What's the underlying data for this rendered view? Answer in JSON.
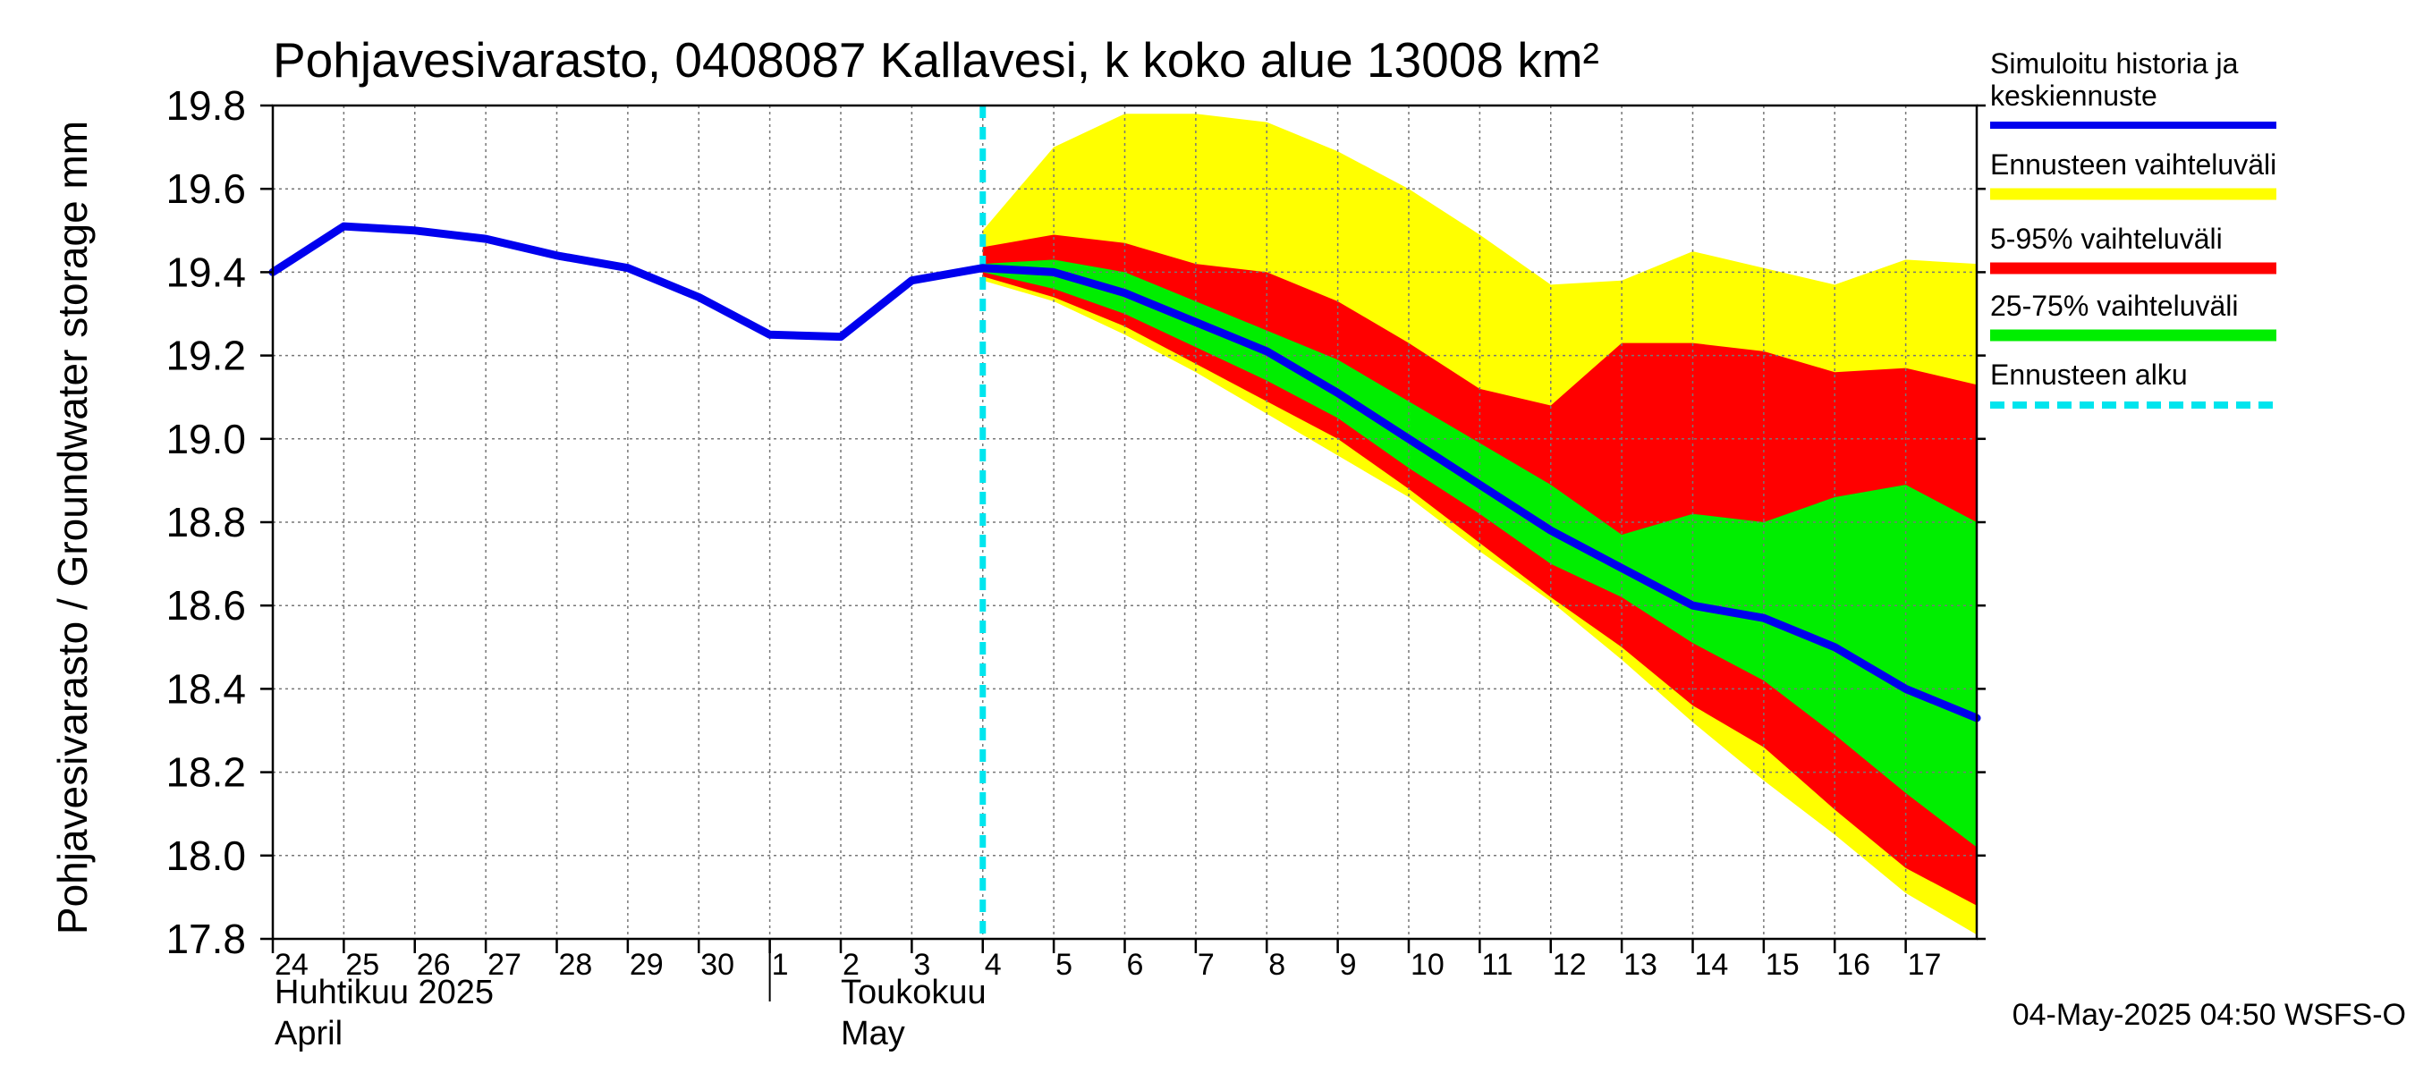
{
  "chart_data": {
    "type": "area",
    "title": "Pohjavesivarasto, 0408087 Kallavesi, k koko alue 13008 km²",
    "ylabel": "Pohjavesivarasto / Groundwater storage   mm",
    "ylim": [
      17.8,
      19.8
    ],
    "y_ticks": [
      "17.8",
      "18.0",
      "18.2",
      "18.4",
      "18.6",
      "18.8",
      "19.0",
      "19.2",
      "19.4",
      "19.6",
      "19.8"
    ],
    "x_tick_labels": [
      "24",
      "25",
      "26",
      "27",
      "28",
      "29",
      "30",
      "1",
      "2",
      "3",
      "4",
      "5",
      "6",
      "7",
      "8",
      "9",
      "10",
      "11",
      "12",
      "13",
      "14",
      "15",
      "16",
      "17"
    ],
    "month_labels": {
      "april_fi": "Huhtikuu  2025",
      "april_en": "April",
      "may_fi": "Toukokuu",
      "may_en": "May"
    },
    "grid": true,
    "x_range": [
      0,
      24
    ],
    "forecast_start": 10,
    "history": {
      "x": [
        0,
        1,
        2,
        3,
        4,
        5,
        6,
        7,
        8,
        9,
        10
      ],
      "values": [
        19.4,
        19.51,
        19.5,
        19.48,
        19.44,
        19.41,
        19.34,
        19.25,
        19.245,
        19.38,
        19.41
      ]
    },
    "forecast_x": [
      10,
      11,
      12,
      13,
      14,
      15,
      16,
      17,
      18,
      19,
      20,
      21,
      22,
      23,
      24
    ],
    "series": [
      {
        "name": "Ennusteen vaihteluväli",
        "color": "#ffff00",
        "upper": [
          19.5,
          19.7,
          19.78,
          19.78,
          19.76,
          19.69,
          19.6,
          19.49,
          19.37,
          19.38,
          19.45,
          19.41,
          19.37,
          19.43,
          19.42
        ],
        "lower": [
          19.38,
          19.33,
          19.25,
          19.16,
          19.06,
          18.96,
          18.86,
          18.73,
          18.61,
          18.47,
          18.32,
          18.18,
          18.05,
          17.91,
          17.81
        ]
      },
      {
        "name": "5-95% vaihteluväli",
        "color": "#ff0000",
        "upper": [
          19.46,
          19.49,
          19.47,
          19.42,
          19.4,
          19.33,
          19.23,
          19.12,
          19.08,
          19.23,
          19.23,
          19.21,
          19.16,
          19.17,
          19.13
        ],
        "lower": [
          19.39,
          19.34,
          19.27,
          19.18,
          19.09,
          19.0,
          18.88,
          18.75,
          18.62,
          18.5,
          18.36,
          18.26,
          18.11,
          17.97,
          17.88
        ]
      },
      {
        "name": "25-75% vaihteluväli",
        "color": "#00ee00",
        "upper": [
          19.42,
          19.43,
          19.4,
          19.33,
          19.26,
          19.19,
          19.09,
          18.99,
          18.89,
          18.77,
          18.82,
          18.8,
          18.86,
          18.89,
          18.8
        ],
        "lower": [
          19.4,
          19.36,
          19.3,
          19.22,
          19.14,
          19.05,
          18.93,
          18.82,
          18.7,
          18.62,
          18.51,
          18.42,
          18.29,
          18.15,
          18.02
        ]
      },
      {
        "name": "Simuloitu historia ja keskiennuste",
        "color": "#0000ee",
        "values": [
          19.42,
          19.4,
          19.35,
          19.28,
          19.21,
          19.11,
          19.0,
          18.89,
          18.78,
          18.69,
          18.6,
          18.57,
          18.5,
          18.4,
          18.33
        ]
      }
    ],
    "legend": {
      "position": "right",
      "items": [
        {
          "label_lines": [
            "Simuloitu historia ja",
            "keskiennuste"
          ],
          "color": "#0000ee",
          "style": "line"
        },
        {
          "label_lines": [
            "Ennusteen vaihteluväli"
          ],
          "color": "#ffff00",
          "style": "band"
        },
        {
          "label_lines": [
            "5-95% vaihteluväli"
          ],
          "color": "#ff0000",
          "style": "band"
        },
        {
          "label_lines": [
            "25-75% vaihteluväli"
          ],
          "color": "#00ee00",
          "style": "band"
        },
        {
          "label_lines": [
            "Ennusteen alku"
          ],
          "color": "#00e5ee",
          "style": "dashed"
        }
      ]
    },
    "timestamp": "04-May-2025 04:50 WSFS-O"
  }
}
